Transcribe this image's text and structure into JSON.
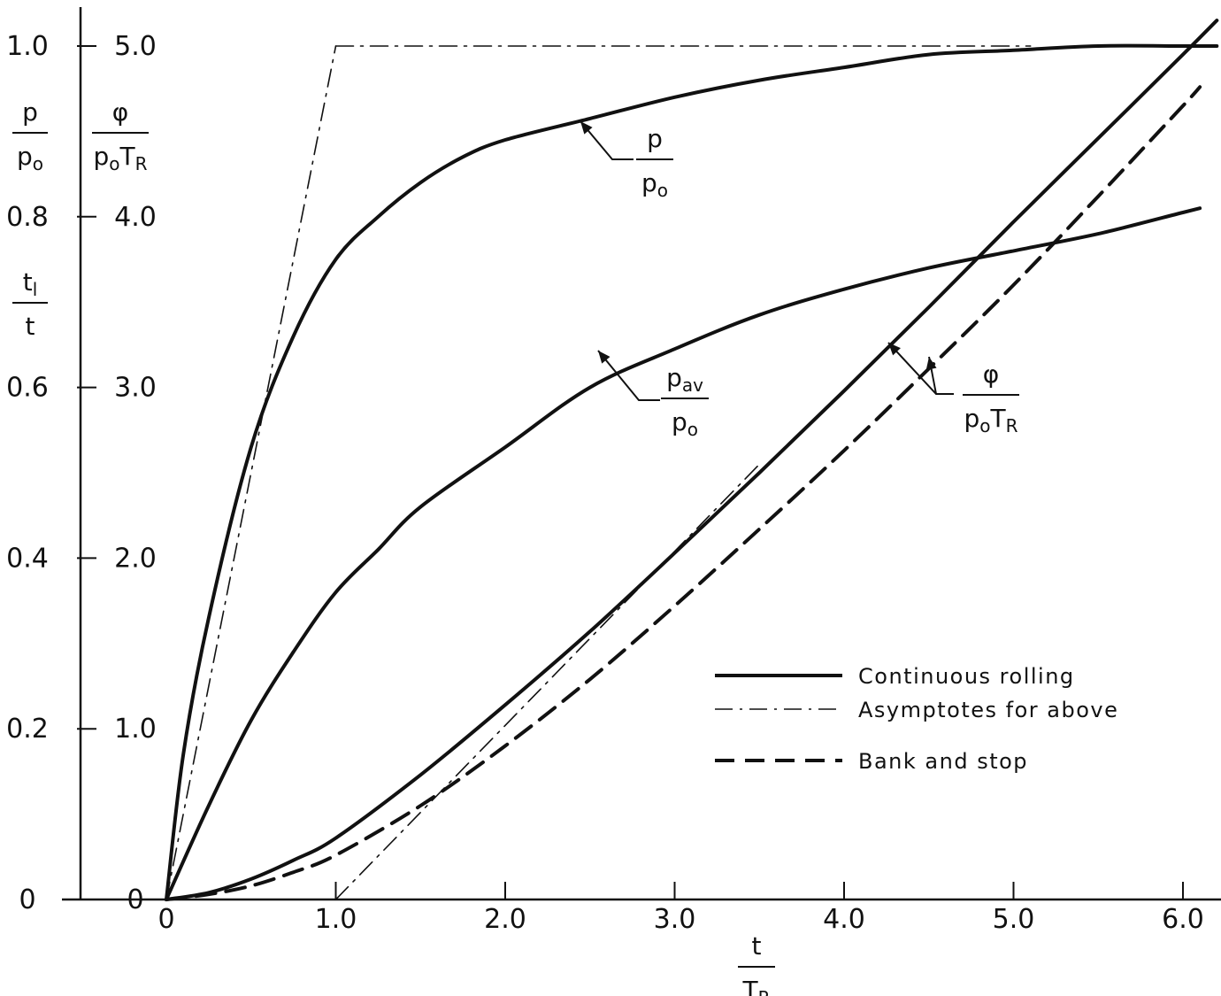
{
  "chart_data": {
    "type": "line",
    "x_axis": {
      "range": [
        0,
        6.2
      ],
      "ticks": [
        0,
        1.0,
        2.0,
        3.0,
        4.0,
        5.0,
        6.0
      ],
      "tick_labels": [
        "0",
        "1.0",
        "2.0",
        "3.0",
        "4.0",
        "5.0",
        "6.0"
      ],
      "label_num": "t",
      "label_den": "T",
      "label_den_sub": "R"
    },
    "y_axis_left": {
      "range": [
        0,
        1.0
      ],
      "ticks": [
        0,
        0.2,
        0.4,
        0.6,
        0.8,
        1.0
      ],
      "tick_labels": [
        "0",
        "0.2",
        "0.4",
        "0.6",
        "0.8",
        "1.0"
      ],
      "label1_num": "p",
      "label1_den": "p",
      "label1_den_sub": "o",
      "label2_num": "t",
      "label2_num_sub": "l",
      "label2_den": "t"
    },
    "y_axis_right": {
      "range": [
        0,
        5.0
      ],
      "ticks": [
        0,
        1.0,
        2.0,
        3.0,
        4.0,
        5.0
      ],
      "tick_labels": [
        "0",
        "1.0",
        "2.0",
        "3.0",
        "4.0",
        "5.0"
      ],
      "label_num": "φ",
      "label_den": "p",
      "label_den_sub": "o",
      "label_den2": "T",
      "label_den2_sub": "R"
    },
    "series": [
      {
        "key": "p_over_p0",
        "axis": "left",
        "style": "solid",
        "x": [
          0,
          0.1,
          0.25,
          0.5,
          0.75,
          1.0,
          1.25,
          1.5,
          1.75,
          2.0,
          2.5,
          3.0,
          3.5,
          4.0,
          4.5,
          5.0,
          5.5,
          6.0,
          6.2
        ],
        "y": [
          0,
          0.17,
          0.33,
          0.53,
          0.66,
          0.75,
          0.8,
          0.84,
          0.87,
          0.89,
          0.915,
          0.94,
          0.96,
          0.975,
          0.99,
          0.995,
          1.0,
          1.0,
          1.0
        ]
      },
      {
        "key": "pav_over_p0",
        "axis": "left",
        "style": "solid",
        "x": [
          0,
          0.25,
          0.5,
          0.75,
          1.0,
          1.25,
          1.5,
          2.0,
          2.5,
          3.0,
          3.5,
          4.0,
          4.5,
          5.0,
          5.5,
          6.0,
          6.1
        ],
        "y": [
          0,
          0.11,
          0.21,
          0.29,
          0.36,
          0.41,
          0.46,
          0.53,
          0.6,
          0.645,
          0.685,
          0.715,
          0.74,
          0.76,
          0.78,
          0.805,
          0.81
        ]
      },
      {
        "key": "phi_over_p0TR_continuous",
        "axis": "right",
        "style": "solid",
        "x": [
          0,
          0.25,
          0.5,
          0.75,
          1.0,
          1.5,
          2.0,
          2.5,
          3.0,
          3.5,
          4.0,
          4.5,
          5.0,
          5.5,
          6.0,
          6.2
        ],
        "y": [
          0,
          0.04,
          0.12,
          0.23,
          0.36,
          0.73,
          1.14,
          1.57,
          2.03,
          2.5,
          2.98,
          3.47,
          3.97,
          4.46,
          4.95,
          5.15
        ]
      },
      {
        "key": "phi_over_p0TR_bank_stop",
        "axis": "right",
        "style": "dashed",
        "x": [
          0,
          0.25,
          0.5,
          0.75,
          1.0,
          1.5,
          2.0,
          2.5,
          3.0,
          3.5,
          4.0,
          4.5,
          5.0,
          5.5,
          6.0,
          6.1
        ],
        "y": [
          0,
          0.03,
          0.08,
          0.16,
          0.26,
          0.55,
          0.9,
          1.29,
          1.72,
          2.17,
          2.63,
          3.11,
          3.6,
          4.12,
          4.65,
          4.76
        ]
      },
      {
        "key": "asymptote_p_rise",
        "axis": "left",
        "style": "dashdot",
        "x": [
          0,
          1.0
        ],
        "y": [
          0,
          1.0
        ]
      },
      {
        "key": "asymptote_p_level",
        "axis": "left",
        "style": "dashdot",
        "x": [
          1.0,
          5.1
        ],
        "y": [
          1.0,
          1.0
        ]
      },
      {
        "key": "asymptote_phi",
        "axis": "right",
        "style": "dashdot",
        "x": [
          1.0,
          3.5
        ],
        "y": [
          0,
          2.55
        ]
      }
    ],
    "annotations": [
      {
        "key": "p_label",
        "num": "p",
        "den": "p",
        "den_sub": "o"
      },
      {
        "key": "pav_label",
        "num": "p",
        "num_sub": "av",
        "den": "p",
        "den_sub": "o"
      },
      {
        "key": "phi_label",
        "num": "φ",
        "den": "p",
        "den_sub": "o",
        "den2": "T",
        "den2_sub": "R"
      }
    ],
    "legend": {
      "placement": "bottom-right",
      "entries": [
        {
          "label": "Continuous rolling",
          "style": "solid"
        },
        {
          "label": "Asymptotes for above",
          "style": "dashdot"
        },
        {
          "label": "Bank and stop",
          "style": "dashed"
        }
      ]
    },
    "grid": false
  }
}
